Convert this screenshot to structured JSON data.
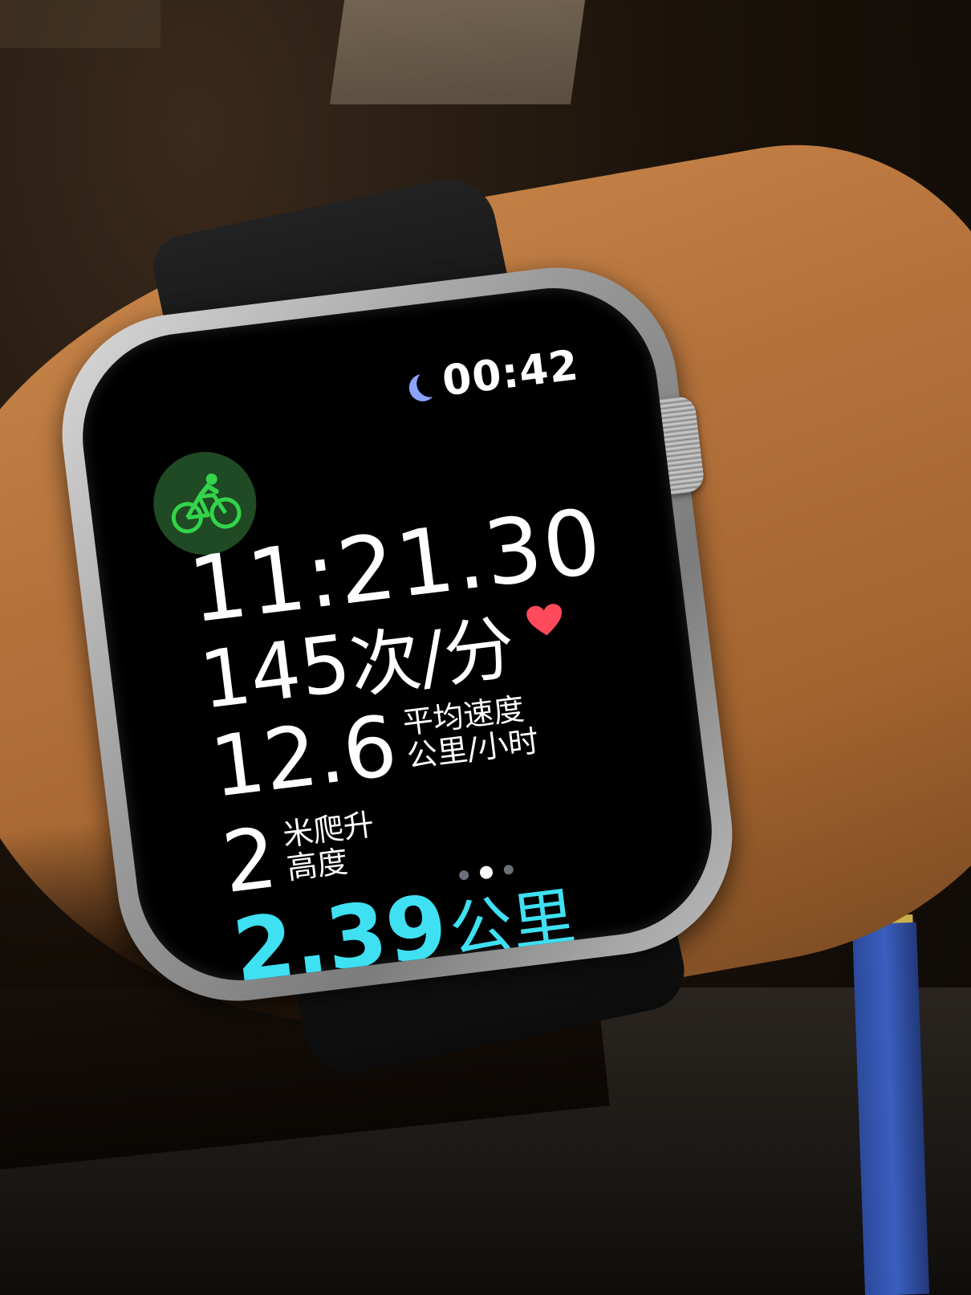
{
  "status": {
    "time": "00:42",
    "focus_icon": "moon-icon",
    "focus_color": "#8aa4ff"
  },
  "workout": {
    "type_icon": "cycling-icon",
    "badge_color": "#1f4a24",
    "icon_color": "#33d44a"
  },
  "metrics": {
    "elapsed_time": "11:21.30",
    "heart_rate_value": "145",
    "heart_rate_unit": "次/分",
    "heart_icon_color": "#ff4a5c",
    "avg_speed_value": "12.6",
    "avg_speed_label_line1": "平均速度",
    "avg_speed_label_line2": "公里/小时",
    "elevation_value": "2",
    "elevation_label_line1": "米爬升",
    "elevation_label_line2": "高度",
    "distance_value": "2.39",
    "distance_unit": "公里",
    "distance_color": "#3fe0f2"
  },
  "pager": {
    "page_count": 3,
    "active_index": 1
  }
}
